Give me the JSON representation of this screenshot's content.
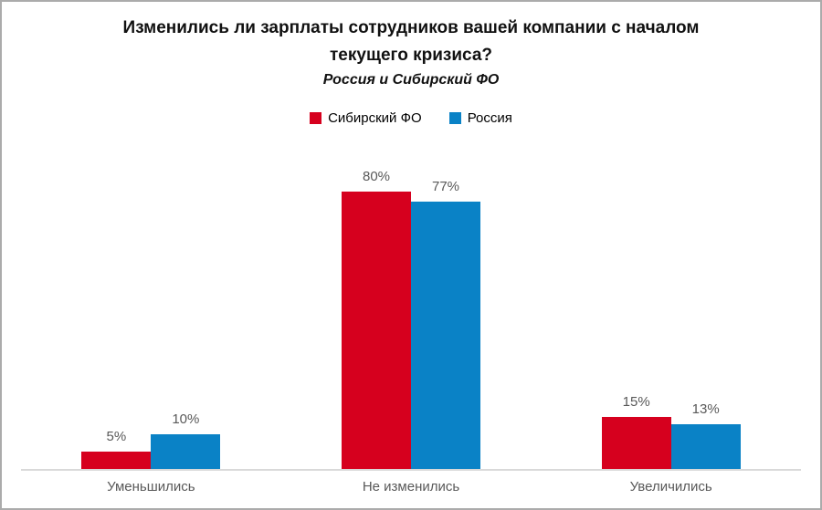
{
  "frame": {
    "border_color": "#ababab",
    "background": "#ffffff"
  },
  "chart_data": {
    "type": "bar",
    "title": "Изменились ли зарплаты сотрудников вашей компании с началом текущего кризиса?",
    "subtitle": "Россия и Сибирский ФО",
    "categories": [
      "Уменьшились",
      "Не изменились",
      "Увеличились"
    ],
    "series": [
      {
        "name": "Сибирский ФО",
        "color": "#d6001e",
        "values": [
          5,
          80,
          15
        ],
        "value_labels": [
          "5%",
          "80%",
          "15%"
        ]
      },
      {
        "name": "Россия",
        "color": "#0a82c6",
        "values": [
          10,
          77,
          13
        ],
        "value_labels": [
          "10%",
          "77%",
          "13%"
        ]
      }
    ],
    "ylim": [
      0,
      100
    ],
    "grid": false,
    "legend_position": "top",
    "axis_line_color": "#d9d9d9",
    "label_color": "#595959"
  }
}
